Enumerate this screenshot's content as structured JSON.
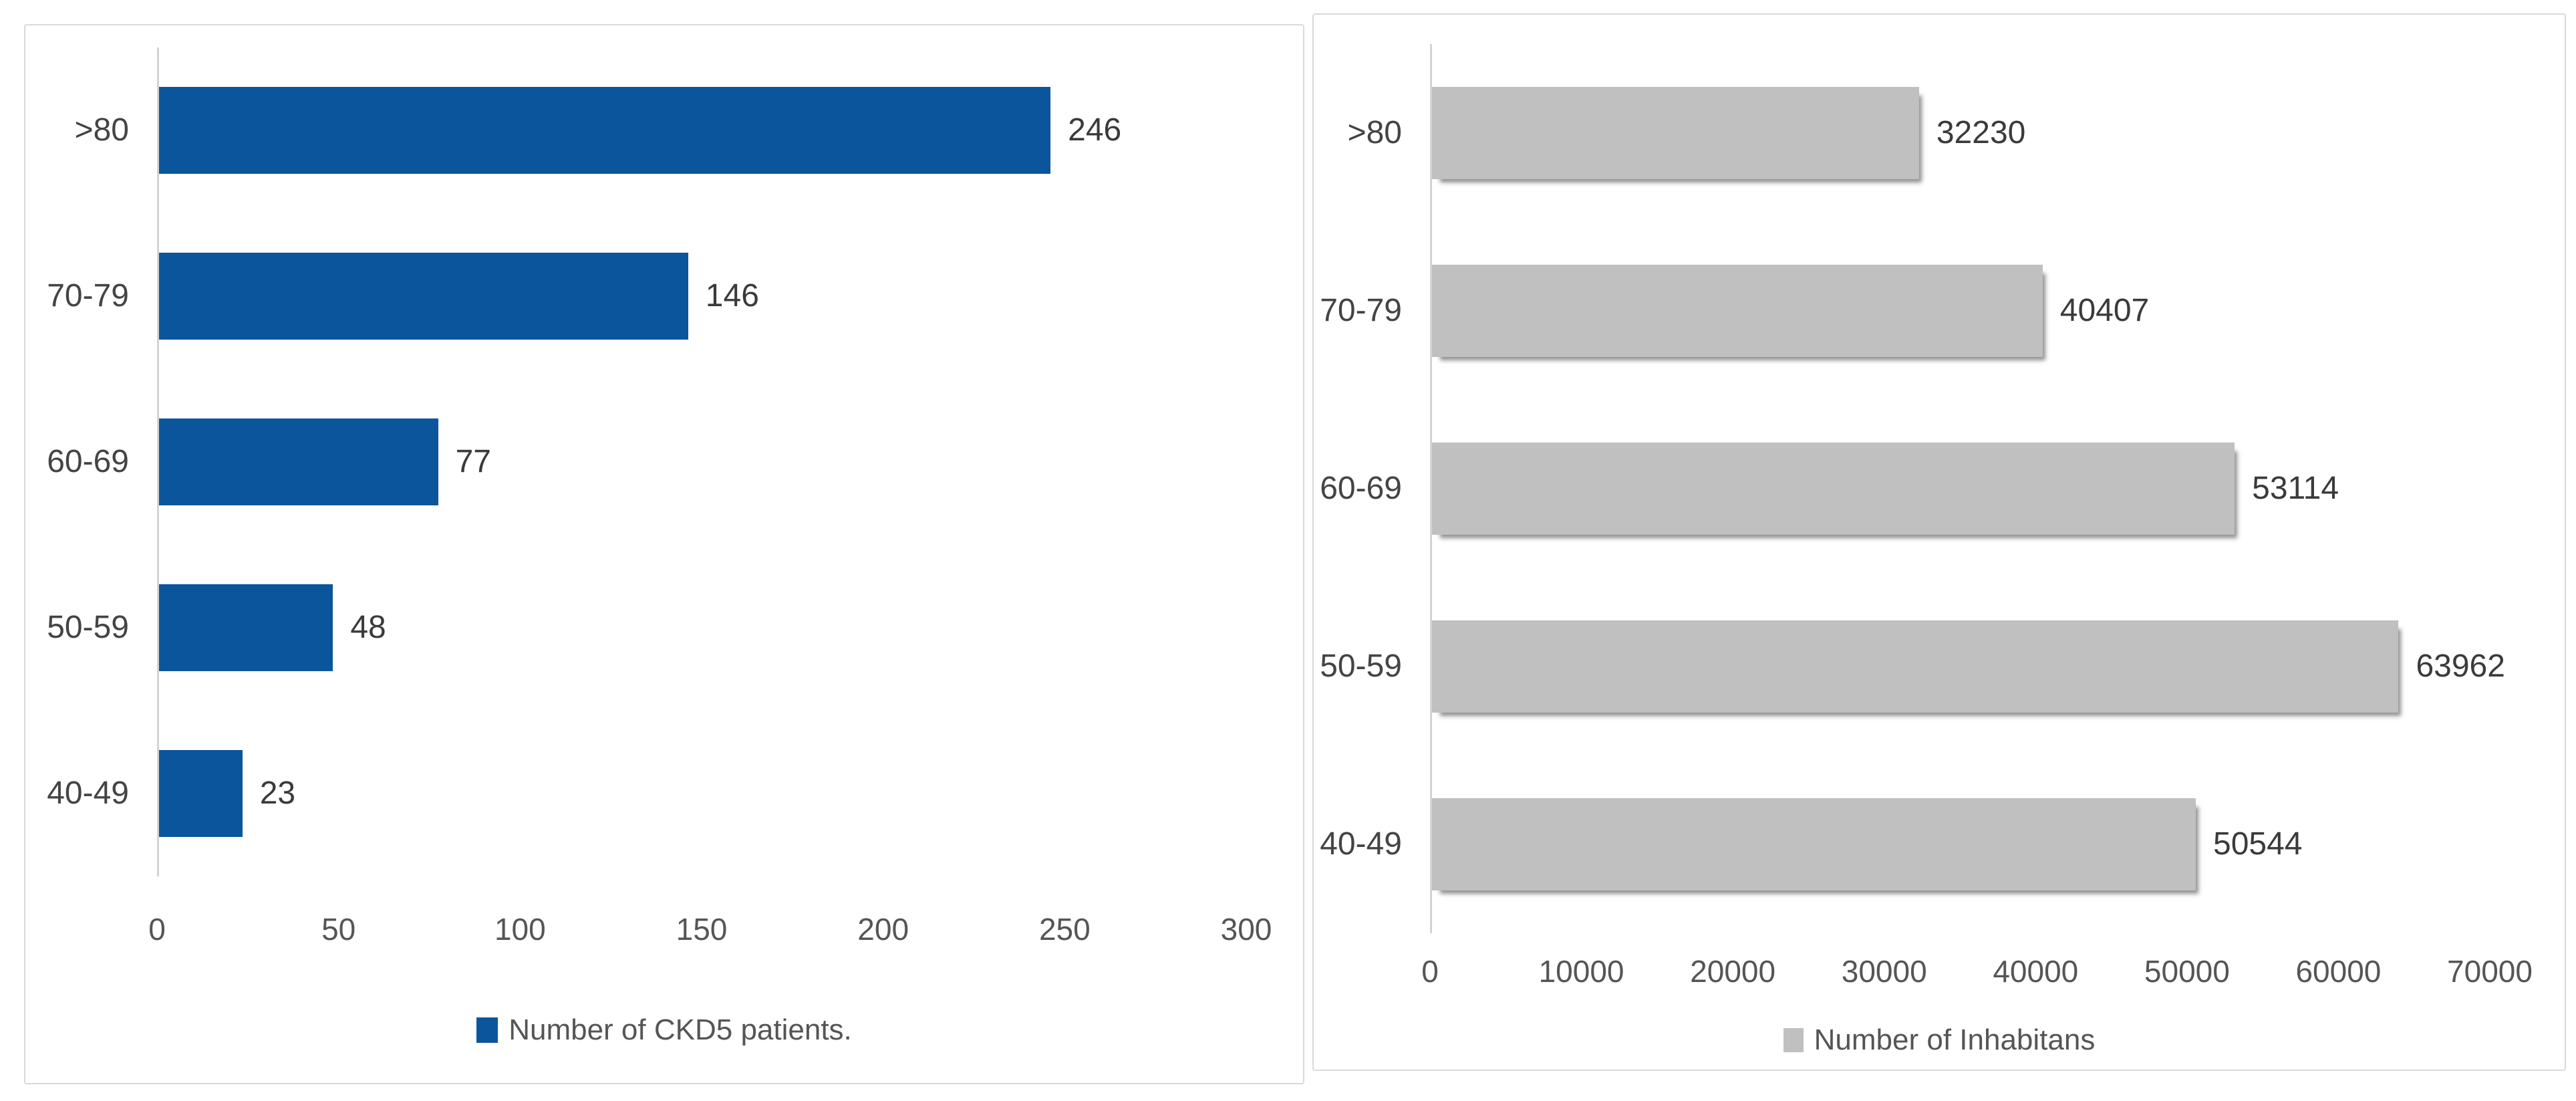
{
  "figure": {
    "background_color": "#FFFFFF",
    "panel_border_color": "#D9D9D9",
    "axis_line_color": "#D2D2D2",
    "category_label_color": "#444444",
    "value_label_color": "#3A3A3A",
    "tick_label_color": "#555555",
    "legend_text_color": "#555555"
  },
  "chart_data": [
    {
      "type": "bar",
      "orientation": "horizontal",
      "title": "",
      "series_name": "Number of CKD5 patients.",
      "categories": [
        ">80",
        "70-79",
        "60-69",
        "50-59",
        "40-49"
      ],
      "values": [
        246,
        146,
        77,
        48,
        23
      ],
      "data_labels": [
        "246",
        "146",
        "77",
        "48",
        "23"
      ],
      "xlabel": "",
      "ylabel": "",
      "xlim": [
        0,
        300
      ],
      "x_ticks": [
        "0",
        "50",
        "100",
        "150",
        "200",
        "250",
        "300"
      ],
      "grid": false,
      "legend_position": "bottom-center",
      "bar_color": "#0B559D",
      "bar_shadow": false,
      "category_order": "top-to-bottom"
    },
    {
      "type": "bar",
      "orientation": "horizontal",
      "title": "",
      "series_name": "Number of Inhabitans",
      "categories": [
        ">80",
        "70-79",
        "60-69",
        "50-59",
        "40-49"
      ],
      "values": [
        32230,
        40407,
        53114,
        63962,
        50544
      ],
      "data_labels": [
        "32230",
        "40407",
        "53114",
        "63962",
        "50544"
      ],
      "xlabel": "",
      "ylabel": "",
      "xlim": [
        0,
        70000
      ],
      "x_ticks": [
        "0",
        "10000",
        "20000",
        "30000",
        "40000",
        "50000",
        "60000",
        "70000"
      ],
      "grid": false,
      "legend_position": "bottom-center",
      "bar_color": "#C0C0C0",
      "bar_shadow": true,
      "category_order": "top-to-bottom"
    }
  ]
}
